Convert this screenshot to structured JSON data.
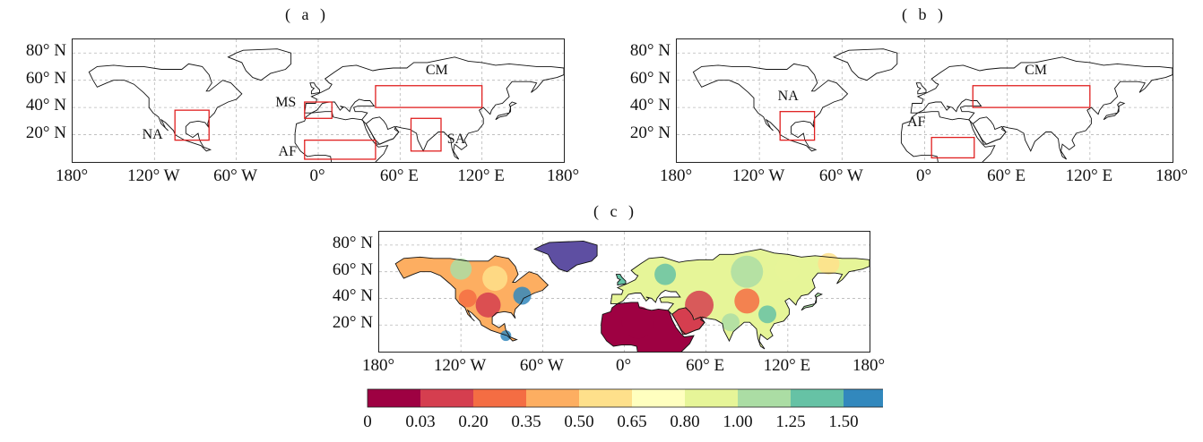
{
  "panels": [
    {
      "id": "a",
      "label": "( a )",
      "regions": [
        {
          "name": "NA",
          "lon": [
            -105,
            -80
          ],
          "lat": [
            16,
            38
          ]
        },
        {
          "name": "MS",
          "lon": [
            -10,
            10
          ],
          "lat": [
            32,
            44
          ]
        },
        {
          "name": "AF",
          "lon": [
            -10,
            42
          ],
          "lat": [
            2,
            16
          ]
        },
        {
          "name": "CM",
          "lon": [
            42,
            120
          ],
          "lat": [
            40,
            56
          ]
        },
        {
          "name": "SA",
          "lon": [
            68,
            90
          ],
          "lat": [
            8,
            32
          ]
        }
      ]
    },
    {
      "id": "b",
      "label": "( b )",
      "regions": [
        {
          "name": "NA",
          "lon": [
            -105,
            -80
          ],
          "lat": [
            16,
            37
          ]
        },
        {
          "name": "AF",
          "lon": [
            5,
            36
          ],
          "lat": [
            3,
            18
          ]
        },
        {
          "name": "CM",
          "lon": [
            35,
            120
          ],
          "lat": [
            40,
            56
          ]
        }
      ]
    },
    {
      "id": "c",
      "label": "( c )"
    }
  ],
  "axes": {
    "lon_ticks": [
      "180°",
      "120° W",
      "60° W",
      "0°",
      "60° E",
      "120° E",
      "180°"
    ],
    "lat_ticks": [
      "80° N",
      "60° N",
      "40° N",
      "20° N"
    ]
  },
  "colorbar": {
    "ticks": [
      "0",
      "0.03",
      "0.20",
      "0.35",
      "0.50",
      "0.65",
      "0.80",
      "1.00",
      "1.25",
      "1.50"
    ],
    "colors": [
      "#9e0142",
      "#d53e4f",
      "#f46d43",
      "#fdae61",
      "#fee08b",
      "#ffffbf",
      "#e6f598",
      "#abdda4",
      "#66c2a5",
      "#3288bd"
    ],
    "extend_color": "#5e4fa2",
    "extend": "max"
  },
  "colors": {
    "region_box": "#e02020",
    "coastline": "#111111",
    "grid": "#b8b8b8"
  }
}
